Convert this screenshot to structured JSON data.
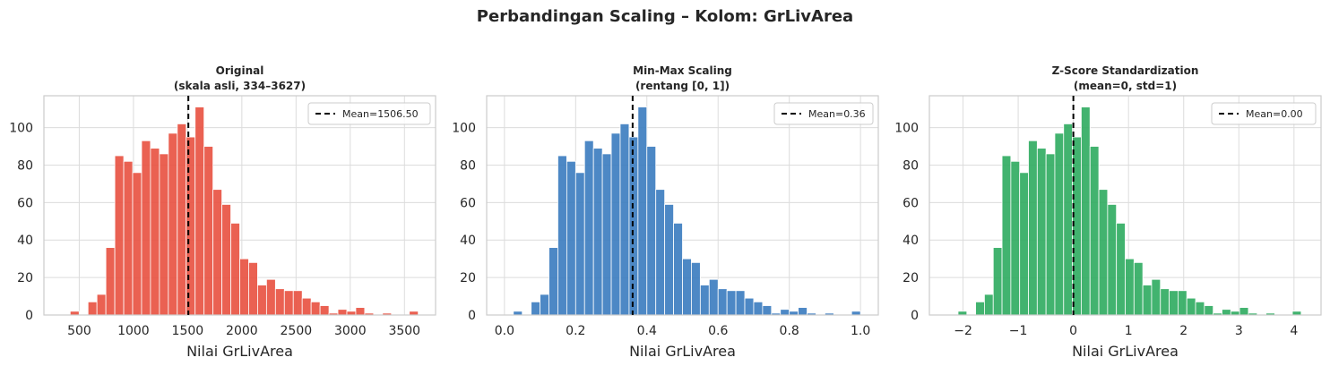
{
  "figure_title": "Perbandingan Scaling – Kolom: GrLivArea",
  "chart_data": [
    {
      "type": "bar",
      "kind": "histogram",
      "title_line1": "Original",
      "title_line2": "(skala asli, 334–3627)",
      "xlabel": "Nilai GrLivArea",
      "ylabel": "",
      "color": "#e8503f",
      "xlim": [
        174,
        3787
      ],
      "ylim": [
        0,
        117
      ],
      "xticks": [
        500,
        1000,
        1500,
        2000,
        2500,
        3000,
        3500
      ],
      "yticks": [
        0,
        20,
        40,
        60,
        80,
        100
      ],
      "grid": true,
      "bin_range": [
        334,
        3627
      ],
      "values": [
        0,
        2,
        0,
        7,
        11,
        36,
        85,
        82,
        76,
        93,
        89,
        86,
        97,
        102,
        95,
        111,
        90,
        67,
        59,
        49,
        30,
        28,
        16,
        19,
        14,
        13,
        13,
        9,
        7,
        5,
        1,
        3,
        2,
        4,
        1,
        0,
        1,
        0,
        0,
        2
      ],
      "mean_line": {
        "value": 1506.5,
        "label": "Mean=1506.50"
      },
      "legend_position": "top-right"
    },
    {
      "type": "bar",
      "kind": "histogram",
      "title_line1": "Min-Max Scaling",
      "title_line2": "(rentang [0, 1])",
      "xlabel": "Nilai GrLivArea",
      "ylabel": "",
      "color": "#3a7bbf",
      "xlim": [
        -0.05,
        1.05
      ],
      "ylim": [
        0,
        117
      ],
      "xticks": [
        0.0,
        0.2,
        0.4,
        0.6,
        0.8,
        1.0
      ],
      "xtick_labels": [
        "0.0",
        "0.2",
        "0.4",
        "0.6",
        "0.8",
        "1.0"
      ],
      "yticks": [
        0,
        20,
        40,
        60,
        80,
        100
      ],
      "grid": true,
      "bin_range": [
        0,
        1
      ],
      "values": [
        0,
        2,
        0,
        7,
        11,
        36,
        85,
        82,
        76,
        93,
        89,
        86,
        97,
        102,
        95,
        111,
        90,
        67,
        59,
        49,
        30,
        28,
        16,
        19,
        14,
        13,
        13,
        9,
        7,
        5,
        1,
        3,
        2,
        4,
        1,
        0,
        1,
        0,
        0,
        2
      ],
      "mean_line": {
        "value": 0.36,
        "label": "Mean=0.36"
      },
      "legend_position": "top-right"
    },
    {
      "type": "bar",
      "kind": "histogram",
      "title_line1": "Z-Score Standardization",
      "title_line2": "(mean=0, std=1)",
      "xlabel": "Nilai GrLivArea",
      "ylabel": "",
      "color": "#2eab5f",
      "xlim": [
        -2.61,
        4.49
      ],
      "ylim": [
        0,
        117
      ],
      "xticks": [
        -2,
        -1,
        0,
        1,
        2,
        3,
        4
      ],
      "xtick_labels": [
        "−2",
        "−1",
        "0",
        "1",
        "2",
        "3",
        "4"
      ],
      "yticks": [
        0,
        20,
        40,
        60,
        80,
        100
      ],
      "grid": true,
      "bin_range": [
        -2.25,
        4.13
      ],
      "values": [
        0,
        2,
        0,
        7,
        11,
        36,
        85,
        82,
        76,
        93,
        89,
        86,
        97,
        102,
        95,
        111,
        90,
        67,
        59,
        49,
        30,
        28,
        16,
        19,
        14,
        13,
        13,
        9,
        7,
        5,
        1,
        3,
        2,
        4,
        1,
        0,
        1,
        0,
        0,
        2
      ],
      "mean_line": {
        "value": 0.0,
        "label": "Mean=0.00"
      },
      "legend_position": "top-right"
    }
  ]
}
